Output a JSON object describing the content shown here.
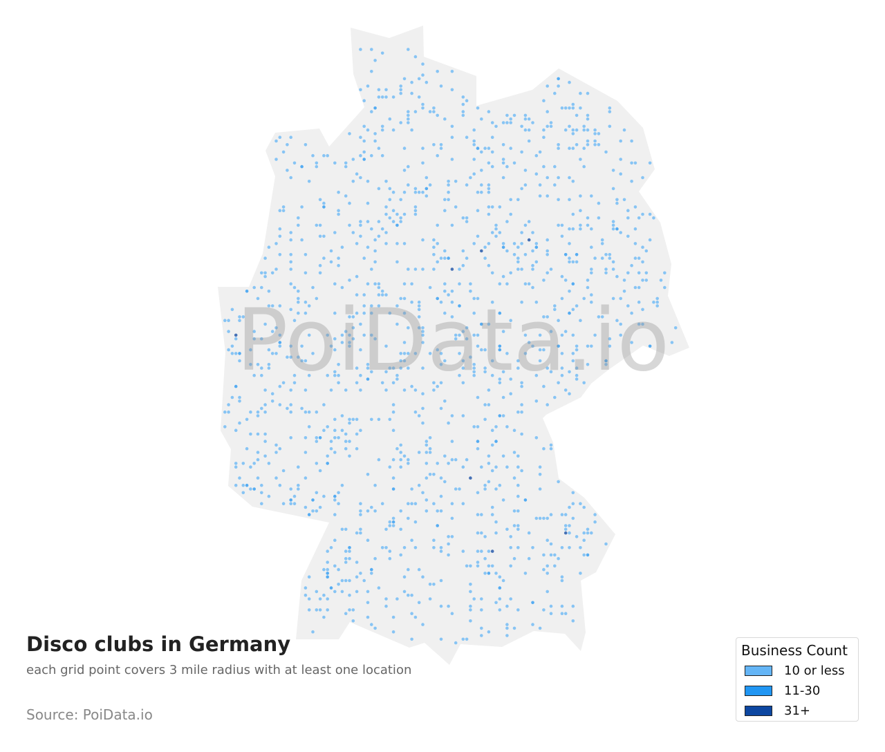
{
  "title": "Disco clubs in Germany",
  "subtitle": "each grid point covers 3 mile radius with at least one location",
  "source": "Source: PoiData.io",
  "watermark": "PoiData.io",
  "colors": {
    "land": "#f0f0f0",
    "low": "#64b5f6",
    "mid": "#2196f3",
    "high": "#0d47a1"
  },
  "legend": {
    "title": "Business Count",
    "items": [
      {
        "label": "10 or less",
        "color": "#64b5f6"
      },
      {
        "label": "11-30",
        "color": "#2196f3"
      },
      {
        "label": "31+",
        "color": "#0d47a1"
      }
    ]
  }
}
